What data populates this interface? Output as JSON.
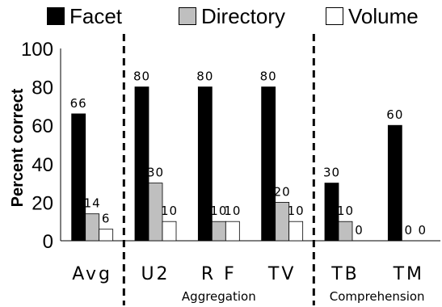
{
  "chart_data": {
    "type": "bar",
    "title": "",
    "xlabel": "",
    "ylabel": "Percent correct",
    "ylim": [
      0,
      100
    ],
    "yticks": [
      0,
      20,
      40,
      60,
      80,
      100
    ],
    "grid": false,
    "legend_position": "top",
    "categories": [
      "Avg",
      "U2",
      "RF",
      "TV",
      "TB",
      "TM"
    ],
    "category_labels": [
      "Avg",
      "U2",
      "R F",
      "TV",
      "TB",
      "TM"
    ],
    "series": [
      {
        "name": "Facet",
        "color": "#000000",
        "values": [
          66,
          80,
          80,
          80,
          30,
          60
        ],
        "labels": [
          "66",
          "80",
          "80",
          "80",
          "30",
          "60"
        ]
      },
      {
        "name": "Directory",
        "color": "#bfbfbf",
        "values": [
          14,
          30,
          10,
          20,
          10,
          0
        ],
        "labels": [
          "14",
          "30",
          "10",
          "20",
          "10",
          "0"
        ]
      },
      {
        "name": "Volume",
        "color": "#ffffff",
        "values": [
          6,
          10,
          10,
          10,
          0,
          0
        ],
        "labels": [
          "6",
          "10",
          "10",
          "10",
          "0",
          "0"
        ]
      }
    ],
    "group_labels": [
      {
        "label": "Aggregation",
        "categories": [
          "U2",
          "RF",
          "TV"
        ]
      },
      {
        "label": "Comprehension",
        "categories": [
          "TB",
          "TM"
        ]
      }
    ],
    "dividers_after_category": [
      "Avg",
      "TV"
    ]
  }
}
